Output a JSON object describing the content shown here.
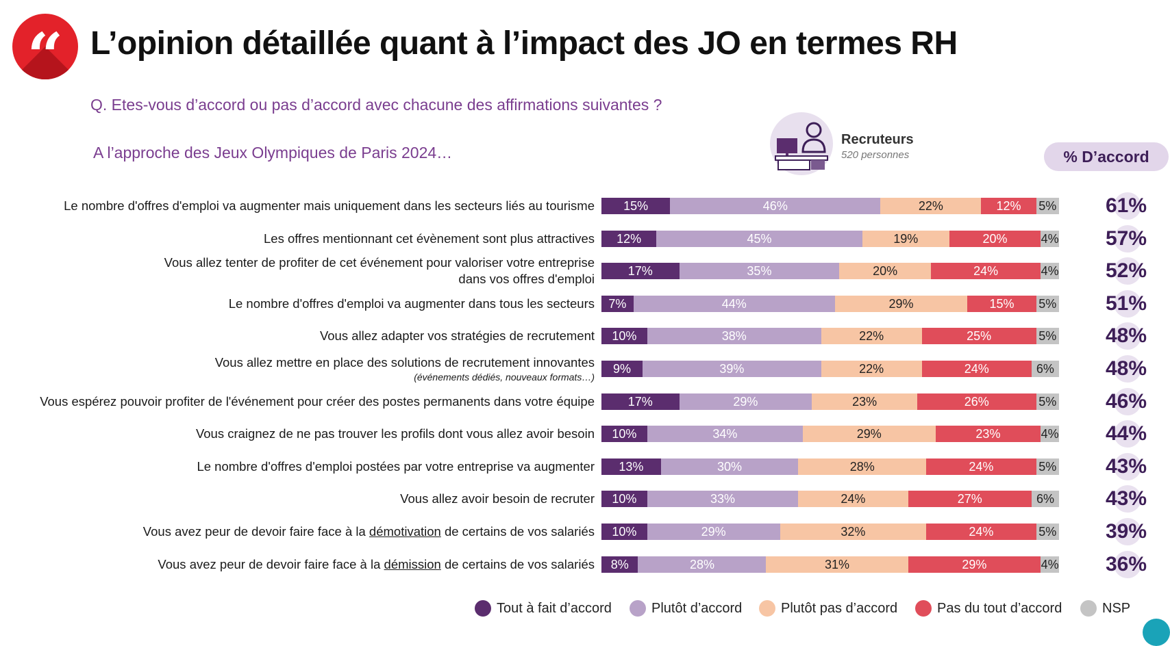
{
  "header": {
    "title": "L’opinion détaillée quant à l’impact des JO en termes RH",
    "question": "Q. Etes-vous d’accord ou pas d’accord avec chacune des affirmations suivantes ?",
    "subquestion": "A l’approche des Jeux Olympiques de Paris 2024…",
    "recruiter_title": "Recruteurs",
    "recruiter_sub": "520 personnes",
    "accord_label": "% D’accord",
    "logo_icon": "quote-icon",
    "recruiter_icon": "recruiter-desk-icon"
  },
  "colors": {
    "tout_a_fait": "#5b2d6e",
    "plutot": "#b8a2c8",
    "plutot_pas": "#f7c5a4",
    "pas_du_tout": "#e04d5a",
    "nsp": "#c4c4c4",
    "accent_purple": "#7a3d8f",
    "logo_red": "#e3222a"
  },
  "chart_data": {
    "type": "bar",
    "orientation": "horizontal-stacked-100",
    "series_names": [
      "Tout à fait d’accord",
      "Plutôt d’accord",
      "Plutôt pas d’accord",
      "Pas du tout d’accord",
      "NSP"
    ],
    "rows": [
      {
        "label": "Le nombre d'offres d'emploi va augmenter mais uniquement dans les secteurs liés au tourisme",
        "note": "",
        "values": [
          15,
          46,
          22,
          12,
          5
        ],
        "accord": "61%"
      },
      {
        "label": "Les offres mentionnant cet évènement sont plus attractives",
        "note": "",
        "values": [
          12,
          45,
          19,
          20,
          4
        ],
        "accord": "57%"
      },
      {
        "label": "Vous allez tenter de profiter de cet événement pour valoriser votre entreprise",
        "label2": "dans vos offres d'emploi",
        "note": "",
        "values": [
          17,
          35,
          20,
          24,
          4
        ],
        "accord": "52%"
      },
      {
        "label": "Le nombre d'offres d'emploi va augmenter dans tous les secteurs",
        "note": "",
        "values": [
          7,
          44,
          29,
          15,
          5
        ],
        "accord": "51%"
      },
      {
        "label": "Vous allez adapter vos stratégies de recrutement",
        "note": "",
        "values": [
          10,
          38,
          22,
          25,
          5
        ],
        "accord": "48%"
      },
      {
        "label": "Vous allez mettre en place des solutions de recrutement innovantes",
        "note": "(événements dédiés, nouveaux formats…)",
        "values": [
          9,
          39,
          22,
          24,
          6
        ],
        "accord": "48%"
      },
      {
        "label": "Vous espérez pouvoir profiter de l'événement pour créer des postes permanents dans votre équipe",
        "note": "",
        "values": [
          17,
          29,
          23,
          26,
          5
        ],
        "accord": "46%"
      },
      {
        "label": "Vous craignez de ne pas trouver les profils dont vous allez avoir besoin",
        "note": "",
        "values": [
          10,
          34,
          29,
          23,
          4
        ],
        "accord": "44%"
      },
      {
        "label": "Le nombre d'offres d'emploi postées par votre entreprise va augmenter",
        "note": "",
        "values": [
          13,
          30,
          28,
          24,
          5
        ],
        "accord": "43%"
      },
      {
        "label": "Vous allez avoir besoin de recruter",
        "note": "",
        "values": [
          10,
          33,
          24,
          27,
          6
        ],
        "accord": "43%"
      },
      {
        "label_pre": "Vous avez peur de devoir faire face à la ",
        "label_ul": "démotivation",
        "label_post": " de certains de vos salariés",
        "note": "",
        "values": [
          10,
          29,
          32,
          24,
          5
        ],
        "accord": "39%"
      },
      {
        "label_pre": "Vous avez peur de devoir faire face à la ",
        "label_ul": "démission",
        "label_post": " de certains de vos salariés",
        "note": "",
        "values": [
          8,
          28,
          31,
          29,
          4
        ],
        "accord": "36%"
      }
    ]
  },
  "legend": [
    {
      "label": "Tout à fait d’accord",
      "color": "#5b2d6e"
    },
    {
      "label": "Plutôt d’accord",
      "color": "#b8a2c8"
    },
    {
      "label": "Plutôt pas d’accord",
      "color": "#f7c5a4"
    },
    {
      "label": "Pas du tout d’accord",
      "color": "#e04d5a"
    },
    {
      "label": "NSP",
      "color": "#c4c4c4"
    }
  ]
}
